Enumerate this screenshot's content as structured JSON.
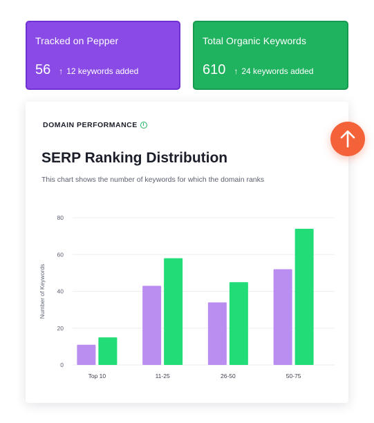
{
  "stats": [
    {
      "title": "Tracked on Pepper",
      "value": "56",
      "arrow": "↑",
      "added": "12 keywords added"
    },
    {
      "title": "Total Organic Keywords",
      "value": "610",
      "arrow": "↑",
      "added": "24 keywords added"
    }
  ],
  "panel": {
    "eyebrow": "DOMAIN PERFORMANCE",
    "info_icon": "info-icon",
    "title": "SERP Ranking Distribution",
    "subtitle": "This chart shows the number of keywords for which the domain ranks"
  },
  "scroll_top_icon": "arrow-up-icon",
  "colors": {
    "purple": "#8a4ae6",
    "green": "#1fb25f",
    "bar_purple": "#b98ef0",
    "bar_green": "#22dd77",
    "accent": "#f4623a"
  },
  "chart_data": {
    "type": "bar",
    "categories": [
      "Top 10",
      "11-25",
      "26-50",
      "50-75"
    ],
    "series": [
      {
        "values": [
          11,
          43,
          34,
          52
        ],
        "color": "#b98ef0"
      },
      {
        "values": [
          15,
          58,
          45,
          74
        ],
        "color": "#22dd77"
      }
    ],
    "ylabel": "Number of Keywords",
    "yticks": [
      0,
      20,
      40,
      60,
      80
    ],
    "ylim": [
      0,
      80
    ],
    "grid": true,
    "legend": "none"
  }
}
